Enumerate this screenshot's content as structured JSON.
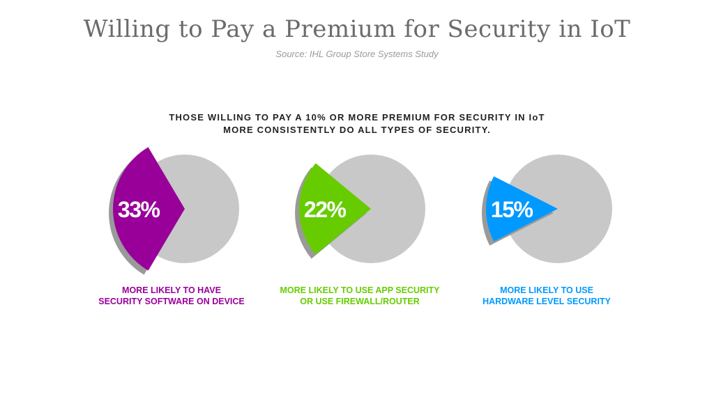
{
  "title": "Willing to Pay a Premium for Security in IoT",
  "source": "Source: IHL Group Store Systems Study",
  "headline": [
    "THOSE WILLING TO PAY A 10% OR MORE PREMIUM FOR SECURITY IN IoT",
    "MORE CONSISTENTLY DO ALL TYPES OF SECURITY."
  ],
  "colors": {
    "background_circle": "#c8c8c8",
    "shadow": "#9a9a9a",
    "label_text": "#ffffff"
  },
  "chart_data": [
    {
      "type": "pie",
      "values": [
        33
      ],
      "value_label": "33%",
      "color": "#990099",
      "caption": [
        "MORE LIKELY TO HAVE",
        "SECURITY SOFTWARE ON DEVICE"
      ]
    },
    {
      "type": "pie",
      "values": [
        22
      ],
      "value_label": "22%",
      "color": "#66cc00",
      "caption": [
        "MORE LIKELY TO USE APP SECURITY",
        "OR USE FIREWALL/ROUTER"
      ]
    },
    {
      "type": "pie",
      "values": [
        15
      ],
      "value_label": "15%",
      "color": "#0099ff",
      "caption": [
        "MORE LIKELY TO USE",
        "HARDWARE LEVEL SECURITY"
      ]
    }
  ]
}
